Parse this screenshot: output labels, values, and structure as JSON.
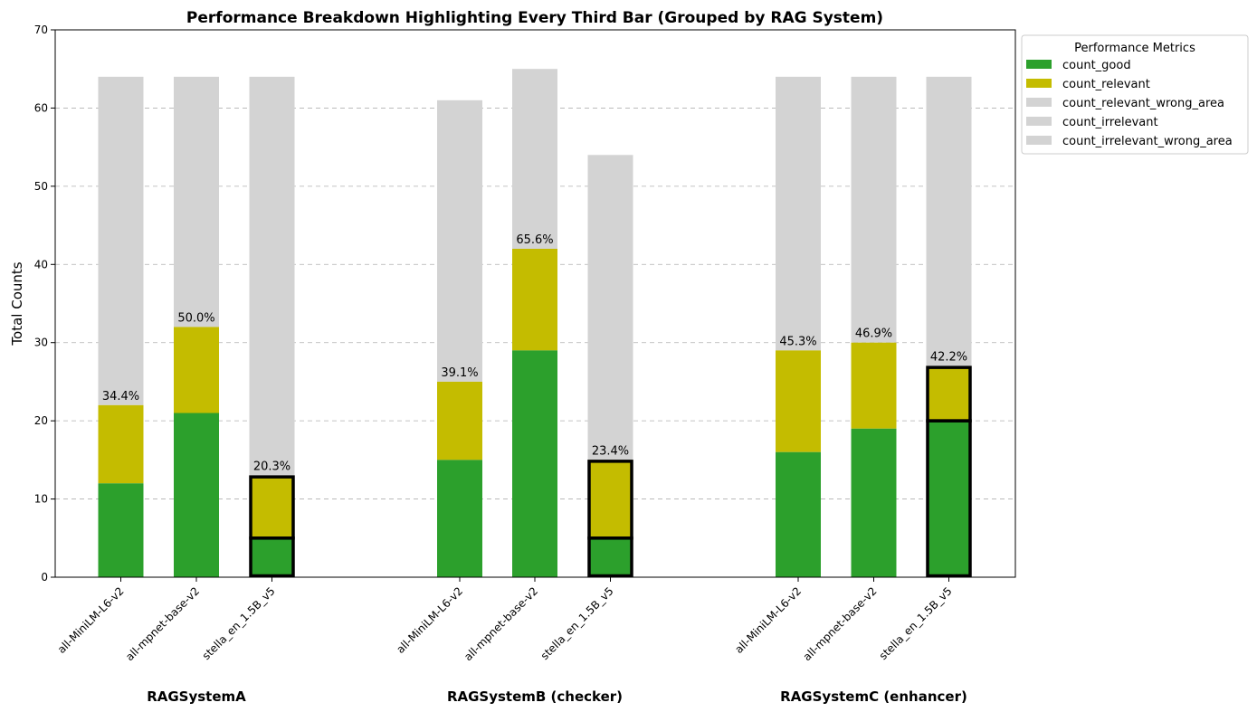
{
  "chart_data": {
    "type": "bar",
    "stacked": true,
    "title": "Performance Breakdown Highlighting Every Third Bar (Grouped by RAG System)",
    "ylabel": "Total Counts",
    "xlabel": "",
    "ylim": [
      0,
      70
    ],
    "yticks": [
      0,
      10,
      20,
      30,
      40,
      50,
      60,
      70
    ],
    "grid": "y-dashed",
    "legend": {
      "title": "Performance Metrics",
      "placement": "outside-top-right",
      "entries": [
        {
          "name": "count_good",
          "color": "#2ca02c"
        },
        {
          "name": "count_relevant",
          "color": "#c4bc00"
        },
        {
          "name": "count_relevant_wrong_area",
          "color": "#d3d3d3"
        },
        {
          "name": "count_irrelevant",
          "color": "#d3d3d3"
        },
        {
          "name": "count_irrelevant_wrong_area",
          "color": "#d3d3d3"
        }
      ]
    },
    "groups": [
      {
        "name": "RAGSystemA",
        "bars": [
          {
            "category": "all-MiniLM-L6-v2",
            "good": 12,
            "relevant": 10,
            "total": 64,
            "label": "34.4%",
            "highlight": false
          },
          {
            "category": "all-mpnet-base-v2",
            "good": 21,
            "relevant": 11,
            "total": 64,
            "label": "50.0%",
            "highlight": false
          },
          {
            "category": "stella_en_1.5B_v5",
            "good": 5,
            "relevant": 8,
            "total": 64,
            "label": "20.3%",
            "highlight": true
          }
        ]
      },
      {
        "name": "RAGSystemB (checker)",
        "bars": [
          {
            "category": "all-MiniLM-L6-v2",
            "good": 15,
            "relevant": 10,
            "total": 61,
            "label": "39.1%",
            "highlight": false
          },
          {
            "category": "all-mpnet-base-v2",
            "good": 29,
            "relevant": 13,
            "total": 65,
            "label": "65.6%",
            "highlight": false
          },
          {
            "category": "stella_en_1.5B_v5",
            "good": 5,
            "relevant": 10,
            "total": 54,
            "label": "23.4%",
            "highlight": true
          }
        ]
      },
      {
        "name": "RAGSystemC (enhancer)",
        "bars": [
          {
            "category": "all-MiniLM-L6-v2",
            "good": 16,
            "relevant": 13,
            "total": 64,
            "label": "45.3%",
            "highlight": false
          },
          {
            "category": "all-mpnet-base-v2",
            "good": 19,
            "relevant": 11,
            "total": 64,
            "label": "46.9%",
            "highlight": false
          },
          {
            "category": "stella_en_1.5B_v5",
            "good": 20,
            "relevant": 7,
            "total": 64,
            "label": "42.2%",
            "highlight": true
          }
        ]
      }
    ],
    "colors": {
      "good": "#2ca02c",
      "relevant": "#c4bc00",
      "rest": "#d3d3d3",
      "highlight_edge": "#000000"
    }
  }
}
